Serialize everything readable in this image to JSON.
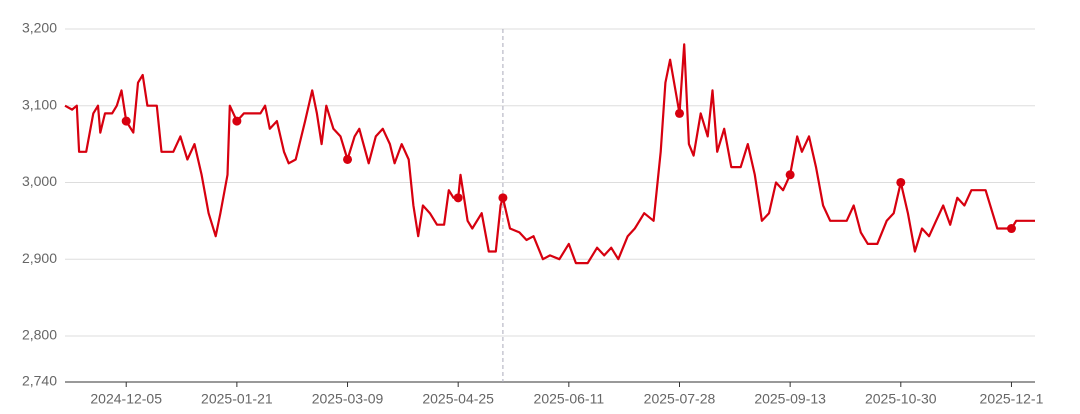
{
  "chart_data": {
    "type": "line",
    "color": "#d7000f",
    "grid": true,
    "x": [
      "2024-11-09",
      "2024-11-12",
      "2024-11-14",
      "2024-11-15",
      "2024-11-18",
      "2024-11-21",
      "2024-11-23",
      "2024-11-24",
      "2024-11-26",
      "2024-11-29",
      "2024-12-01",
      "2024-12-03",
      "2024-12-05",
      "2024-12-08",
      "2024-12-10",
      "2024-12-12",
      "2024-12-14",
      "2024-12-18",
      "2024-12-20",
      "2024-12-25",
      "2024-12-28",
      "2024-12-31",
      "2025-01-03",
      "2025-01-06",
      "2025-01-09",
      "2025-01-12",
      "2025-01-14",
      "2025-01-17",
      "2025-01-18",
      "2025-01-21",
      "2025-01-24",
      "2025-01-31",
      "2025-02-02",
      "2025-02-04",
      "2025-02-07",
      "2025-02-10",
      "2025-02-12",
      "2025-02-15",
      "2025-02-19",
      "2025-02-22",
      "2025-02-24",
      "2025-02-26",
      "2025-02-28",
      "2025-03-03",
      "2025-03-06",
      "2025-03-09",
      "2025-03-12",
      "2025-03-14",
      "2025-03-18",
      "2025-03-21",
      "2025-03-24",
      "2025-03-27",
      "2025-03-29",
      "2025-04-01",
      "2025-04-04",
      "2025-04-06",
      "2025-04-08",
      "2025-04-10",
      "2025-04-13",
      "2025-04-16",
      "2025-04-19",
      "2025-04-21",
      "2025-04-23",
      "2025-04-25",
      "2025-04-26",
      "2025-04-29",
      "2025-05-01",
      "2025-05-05",
      "2025-05-08",
      "2025-05-11",
      "2025-05-13",
      "2025-05-14",
      "2025-05-17",
      "2025-05-21",
      "2025-05-24",
      "2025-05-27",
      "2025-05-31",
      "2025-06-03",
      "2025-06-07",
      "2025-06-11",
      "2025-06-14",
      "2025-06-19",
      "2025-06-23",
      "2025-06-26",
      "2025-06-29",
      "2025-07-02",
      "2025-07-06",
      "2025-07-09",
      "2025-07-13",
      "2025-07-17",
      "2025-07-20",
      "2025-07-22",
      "2025-07-24",
      "2025-07-28",
      "2025-07-30",
      "2025-08-01",
      "2025-08-03",
      "2025-08-06",
      "2025-08-09",
      "2025-08-11",
      "2025-08-13",
      "2025-08-16",
      "2025-08-19",
      "2025-08-23",
      "2025-08-26",
      "2025-08-29",
      "2025-09-01",
      "2025-09-04",
      "2025-09-07",
      "2025-09-10",
      "2025-09-13",
      "2025-09-16",
      "2025-09-18",
      "2025-09-21",
      "2025-09-24",
      "2025-09-27",
      "2025-09-30",
      "2025-10-07",
      "2025-10-10",
      "2025-10-13",
      "2025-10-16",
      "2025-10-20",
      "2025-10-24",
      "2025-10-27",
      "2025-10-30",
      "2025-11-02",
      "2025-11-05",
      "2025-11-08",
      "2025-11-11",
      "2025-11-14",
      "2025-11-17",
      "2025-11-20",
      "2025-11-23",
      "2025-11-26",
      "2025-11-29",
      "2025-12-05",
      "2025-12-08",
      "2025-12-10",
      "2025-12-16",
      "2025-12-18",
      "2025-12-26"
    ],
    "values": [
      3100,
      3095,
      3100,
      3040,
      3040,
      3090,
      3100,
      3065,
      3090,
      3090,
      3100,
      3120,
      3080,
      3065,
      3130,
      3140,
      3100,
      3100,
      3040,
      3040,
      3060,
      3030,
      3050,
      3010,
      2960,
      2930,
      2960,
      3010,
      3100,
      3080,
      3090,
      3090,
      3100,
      3070,
      3080,
      3040,
      3025,
      3030,
      3080,
      3120,
      3090,
      3050,
      3100,
      3070,
      3060,
      3030,
      3060,
      3070,
      3025,
      3060,
      3070,
      3050,
      3025,
      3050,
      3030,
      2970,
      2930,
      2970,
      2960,
      2945,
      2945,
      2990,
      2980,
      2980,
      3010,
      2950,
      2940,
      2960,
      2910,
      2910,
      2970,
      2980,
      2940,
      2935,
      2925,
      2930,
      2900,
      2905,
      2900,
      2920,
      2895,
      2895,
      2915,
      2905,
      2915,
      2900,
      2930,
      2940,
      2960,
      2950,
      3040,
      3130,
      3160,
      3090,
      3180,
      3050,
      3035,
      3090,
      3060,
      3120,
      3040,
      3070,
      3020,
      3020,
      3050,
      3010,
      2950,
      2960,
      3000,
      2990,
      3010,
      3060,
      3040,
      3060,
      3020,
      2970,
      2950,
      2950,
      2970,
      2935,
      2920,
      2920,
      2950,
      2960,
      3000,
      2960,
      2910,
      2940,
      2930,
      2950,
      2970,
      2945,
      2980,
      2970,
      2990,
      2990,
      2960,
      2940,
      2940,
      2950,
      2950
    ],
    "highlighted_x": [
      "2024-12-05",
      "2025-01-21",
      "2025-03-09",
      "2025-04-25",
      "2025-05-14",
      "2025-07-28",
      "2025-09-13",
      "2025-10-30",
      "2025-12-16"
    ],
    "crosshair_x": "2025-05-14",
    "xlim": [
      "2024-11-09",
      "2025-12-26"
    ],
    "xticks": [
      "2024-12-05",
      "2025-01-21",
      "2025-03-09",
      "2025-04-25",
      "2025-06-11",
      "2025-07-28",
      "2025-09-13",
      "2025-10-30",
      {
        "value": "2025-12-16",
        "label": "2025-12-1"
      }
    ],
    "ylim": [
      2740,
      3200
    ],
    "yticks": [
      {
        "value": 2740,
        "label": "2,740"
      },
      {
        "value": 2800,
        "label": "2,800"
      },
      {
        "value": 2900,
        "label": "2,900"
      },
      {
        "value": 3000,
        "label": "3,000"
      },
      {
        "value": 3100,
        "label": "3,100"
      },
      {
        "value": 3200,
        "label": "3,200"
      }
    ]
  }
}
